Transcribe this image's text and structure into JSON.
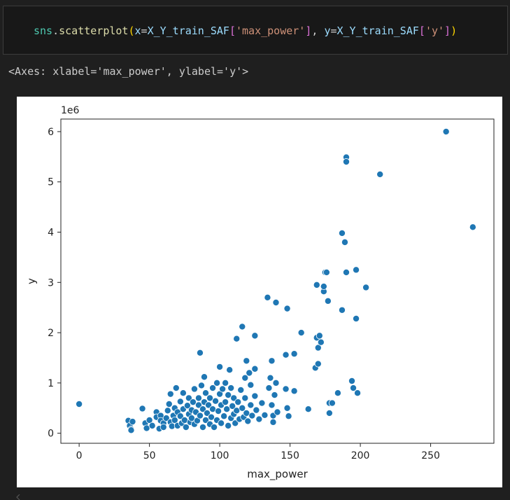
{
  "code_cell": {
    "tokens": [
      {
        "text": "sns",
        "cls": "tk-var"
      },
      {
        "text": ".",
        "cls": "tk-op"
      },
      {
        "text": "scatterplot",
        "cls": "tk-fn"
      },
      {
        "text": "(",
        "cls": "tk-paren"
      },
      {
        "text": "x",
        "cls": "tk-plain"
      },
      {
        "text": "=",
        "cls": "tk-op"
      },
      {
        "text": "X_Y_train_SAF",
        "cls": "tk-plain"
      },
      {
        "text": "[",
        "cls": "tk-bracket"
      },
      {
        "text": "'max_power'",
        "cls": "tk-str"
      },
      {
        "text": "]",
        "cls": "tk-bracket"
      },
      {
        "text": ", ",
        "cls": "tk-op"
      },
      {
        "text": "y",
        "cls": "tk-plain"
      },
      {
        "text": "=",
        "cls": "tk-op"
      },
      {
        "text": "X_Y_train_SAF",
        "cls": "tk-plain"
      },
      {
        "text": "[",
        "cls": "tk-bracket"
      },
      {
        "text": "'y'",
        "cls": "tk-str"
      },
      {
        "text": "]",
        "cls": "tk-bracket"
      },
      {
        "text": ")",
        "cls": "tk-paren"
      }
    ]
  },
  "output": {
    "text": "<Axes: xlabel='max_power', ylabel='y'>"
  },
  "chart_data": {
    "type": "scatter",
    "xlabel": "max_power",
    "ylabel": "y",
    "y_offset_label": "1e6",
    "xlim": [
      -13,
      295
    ],
    "ylim": [
      -200000,
      6250000
    ],
    "xticks": [
      0,
      50,
      100,
      150,
      200,
      250
    ],
    "yticks": [
      0,
      1000000,
      2000000,
      3000000,
      4000000,
      5000000,
      6000000
    ],
    "ytick_labels": [
      "0",
      "1",
      "2",
      "3",
      "4",
      "5",
      "6"
    ],
    "grid": false,
    "marker_color": "#1f77b4",
    "points": [
      [
        0,
        580000
      ],
      [
        35,
        250000
      ],
      [
        36,
        150000
      ],
      [
        37,
        80000
      ],
      [
        38,
        230000
      ],
      [
        37,
        60000
      ],
      [
        45,
        490000
      ],
      [
        47,
        200000
      ],
      [
        48,
        100000
      ],
      [
        50,
        260000
      ],
      [
        52,
        150000
      ],
      [
        55,
        420000
      ],
      [
        55,
        320000
      ],
      [
        57,
        90000
      ],
      [
        58,
        350000
      ],
      [
        58,
        250000
      ],
      [
        60,
        200000
      ],
      [
        60,
        120000
      ],
      [
        62,
        300000
      ],
      [
        63,
        450000
      ],
      [
        64,
        580000
      ],
      [
        65,
        780000
      ],
      [
        65,
        220000
      ],
      [
        66,
        140000
      ],
      [
        67,
        350000
      ],
      [
        68,
        500000
      ],
      [
        68,
        260000
      ],
      [
        69,
        900000
      ],
      [
        70,
        150000
      ],
      [
        70,
        420000
      ],
      [
        72,
        630000
      ],
      [
        72,
        340000
      ],
      [
        73,
        200000
      ],
      [
        74,
        800000
      ],
      [
        74,
        480000
      ],
      [
        75,
        260000
      ],
      [
        76,
        120000
      ],
      [
        77,
        550000
      ],
      [
        78,
        380000
      ],
      [
        78,
        700000
      ],
      [
        79,
        220000
      ],
      [
        80,
        460000
      ],
      [
        80,
        300000
      ],
      [
        81,
        620000
      ],
      [
        82,
        180000
      ],
      [
        82,
        880000
      ],
      [
        83,
        420000
      ],
      [
        84,
        250000
      ],
      [
        85,
        560000
      ],
      [
        85,
        700000
      ],
      [
        86,
        1600000
      ],
      [
        86,
        350000
      ],
      [
        87,
        950000
      ],
      [
        88,
        120000
      ],
      [
        88,
        480000
      ],
      [
        89,
        1120000
      ],
      [
        89,
        620000
      ],
      [
        90,
        260000
      ],
      [
        90,
        800000
      ],
      [
        91,
        400000
      ],
      [
        92,
        560000
      ],
      [
        93,
        180000
      ],
      [
        93,
        700000
      ],
      [
        94,
        320000
      ],
      [
        95,
        900000
      ],
      [
        95,
        480000
      ],
      [
        96,
        120000
      ],
      [
        97,
        640000
      ],
      [
        98,
        260000
      ],
      [
        98,
        1000000
      ],
      [
        99,
        440000
      ],
      [
        100,
        780000
      ],
      [
        100,
        1320000
      ],
      [
        101,
        200000
      ],
      [
        101,
        560000
      ],
      [
        102,
        880000
      ],
      [
        103,
        340000
      ],
      [
        104,
        1000000
      ],
      [
        104,
        620000
      ],
      [
        105,
        480000
      ],
      [
        106,
        150000
      ],
      [
        106,
        760000
      ],
      [
        107,
        1260000
      ],
      [
        108,
        300000
      ],
      [
        108,
        900000
      ],
      [
        109,
        540000
      ],
      [
        110,
        380000
      ],
      [
        110,
        700000
      ],
      [
        111,
        200000
      ],
      [
        112,
        1880000
      ],
      [
        112,
        450000
      ],
      [
        113,
        620000
      ],
      [
        114,
        280000
      ],
      [
        115,
        860000
      ],
      [
        116,
        2120000
      ],
      [
        116,
        500000
      ],
      [
        117,
        320000
      ],
      [
        118,
        1100000
      ],
      [
        118,
        700000
      ],
      [
        119,
        1440000
      ],
      [
        119,
        400000
      ],
      [
        120,
        240000
      ],
      [
        121,
        1200000
      ],
      [
        122,
        560000
      ],
      [
        122,
        960000
      ],
      [
        123,
        350000
      ],
      [
        125,
        1280000
      ],
      [
        125,
        1940000
      ],
      [
        125,
        740000
      ],
      [
        126,
        460000
      ],
      [
        128,
        280000
      ],
      [
        130,
        600000
      ],
      [
        132,
        360000
      ],
      [
        134,
        2700000
      ],
      [
        135,
        900000
      ],
      [
        136,
        1100000
      ],
      [
        137,
        1440000
      ],
      [
        137,
        560000
      ],
      [
        138,
        220000
      ],
      [
        138,
        350000
      ],
      [
        139,
        760000
      ],
      [
        140,
        2600000
      ],
      [
        140,
        1000000
      ],
      [
        141,
        420000
      ],
      [
        147,
        1560000
      ],
      [
        147,
        880000
      ],
      [
        148,
        500000
      ],
      [
        148,
        2480000
      ],
      [
        149,
        340000
      ],
      [
        153,
        1580000
      ],
      [
        153,
        840000
      ],
      [
        158,
        2000000
      ],
      [
        163,
        480000
      ],
      [
        168,
        1300000
      ],
      [
        169,
        1900000
      ],
      [
        169,
        2950000
      ],
      [
        170,
        1380000
      ],
      [
        170,
        1700000
      ],
      [
        171,
        1940000
      ],
      [
        172,
        1810000
      ],
      [
        174,
        2820000
      ],
      [
        174,
        2920000
      ],
      [
        175,
        3200000
      ],
      [
        176,
        3200000
      ],
      [
        177,
        2630000
      ],
      [
        178,
        600000
      ],
      [
        180,
        600000
      ],
      [
        178,
        400000
      ],
      [
        184,
        800000
      ],
      [
        187,
        3980000
      ],
      [
        187,
        2450000
      ],
      [
        189,
        3800000
      ],
      [
        190,
        5490000
      ],
      [
        190,
        5400000
      ],
      [
        190,
        3200000
      ],
      [
        194,
        1040000
      ],
      [
        195,
        900000
      ],
      [
        197,
        3250000
      ],
      [
        197,
        2280000
      ],
      [
        198,
        800000
      ],
      [
        204,
        2900000
      ],
      [
        214,
        5150000
      ],
      [
        261,
        6000000
      ],
      [
        280,
        4100000
      ]
    ]
  }
}
